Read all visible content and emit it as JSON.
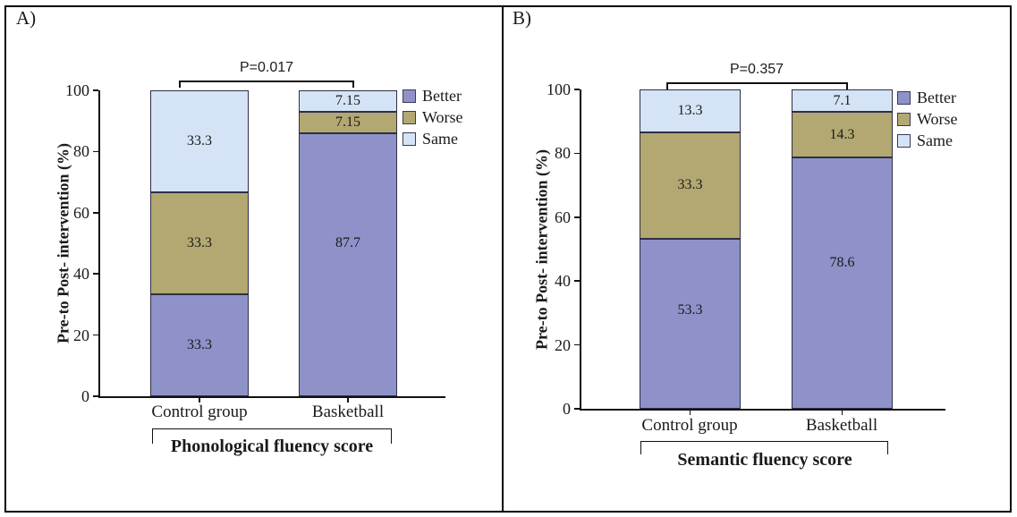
{
  "legend": {
    "items": [
      {
        "label": "Better",
        "color_key": "better"
      },
      {
        "label": "Worse",
        "color_key": "worse"
      },
      {
        "label": "Same",
        "color_key": "same"
      }
    ]
  },
  "colors": {
    "better": "#8e92c9",
    "worse": "#b3a871",
    "same": "#d4e4f6",
    "segment_border": "#2e2e44",
    "axis": "#111111"
  },
  "chart_data": [
    {
      "type": "bar",
      "subtype": "stacked-100-percent",
      "panel_label": "A)",
      "title": "Phonological fluency score",
      "ylabel": "Pre-to Post- intervention (%)",
      "xlabel": "",
      "ylim": [
        0,
        100
      ],
      "yticks": [
        0,
        20,
        40,
        60,
        80,
        100
      ],
      "categories": [
        "Control group",
        "Basketball"
      ],
      "series": [
        {
          "name": "Better",
          "values": [
            33.3,
            87.7
          ]
        },
        {
          "name": "Worse",
          "values": [
            33.3,
            7.15
          ]
        },
        {
          "name": "Same",
          "values": [
            33.3,
            7.15
          ]
        }
      ],
      "annotation": "P=0.017",
      "legend_position": "right",
      "grid": false
    },
    {
      "type": "bar",
      "subtype": "stacked-100-percent",
      "panel_label": "B)",
      "title": "Semantic fluency score",
      "ylabel": "Pre-to Post- intervention (%)",
      "xlabel": "",
      "ylim": [
        0,
        100
      ],
      "yticks": [
        0,
        20,
        40,
        60,
        80,
        100
      ],
      "categories": [
        "Control group",
        "Basketball"
      ],
      "series": [
        {
          "name": "Better",
          "values": [
            53.3,
            78.6
          ]
        },
        {
          "name": "Worse",
          "values": [
            33.3,
            14.3
          ]
        },
        {
          "name": "Same",
          "values": [
            13.3,
            7.1
          ]
        }
      ],
      "annotation": "P=0.357",
      "legend_position": "right",
      "grid": false
    }
  ]
}
